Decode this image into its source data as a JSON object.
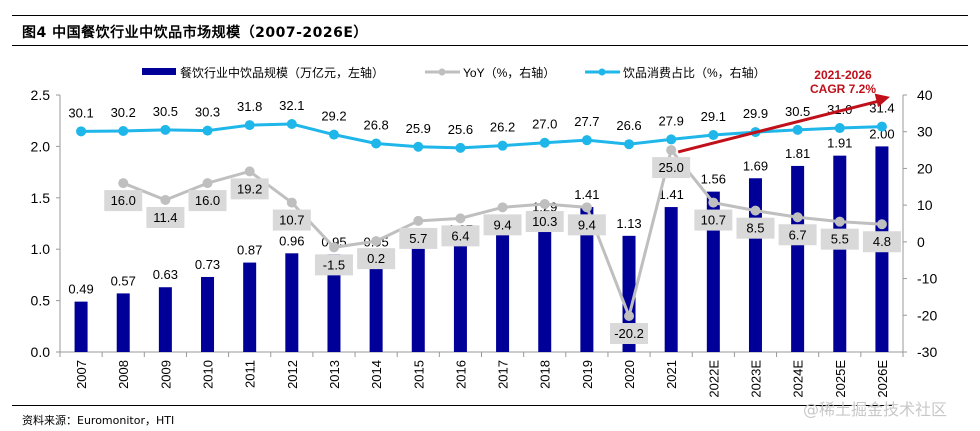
{
  "figure": {
    "title": "图4  中国餐饮行业中饮品市场规模（2007-2026E）",
    "source": "资料来源：Euromonitor，HTI",
    "watermark": "@稀土掘金技术社区"
  },
  "chart_data": {
    "type": "bar+line",
    "categories": [
      "2007",
      "2008",
      "2009",
      "2010",
      "2011",
      "2012",
      "2013",
      "2014",
      "2015",
      "2016",
      "2017",
      "2018",
      "2019",
      "2020",
      "2021",
      "2022E",
      "2023E",
      "2024E",
      "2025E",
      "2026E"
    ],
    "series": [
      {
        "name": "餐饮行业中饮品规模（万亿元，左轴）",
        "type": "bar",
        "axis": "left",
        "color": "#000099",
        "values": [
          0.49,
          0.57,
          0.63,
          0.73,
          0.87,
          0.96,
          0.95,
          0.95,
          1.01,
          1.07,
          1.17,
          1.29,
          1.41,
          1.13,
          1.41,
          1.56,
          1.69,
          1.81,
          1.91,
          2.0
        ],
        "labels": [
          "0.49",
          "0.57",
          "0.63",
          "0.73",
          "0.87",
          "0.96",
          "0.95",
          "0.95",
          "1.01",
          "1.07",
          "1.17",
          "1.29",
          "1.41",
          "1.13",
          "1.41",
          "1.56",
          "1.69",
          "1.81",
          "1.91",
          "2.00"
        ]
      },
      {
        "name": "YoY（%，右轴）",
        "type": "line",
        "axis": "right",
        "color": "#bfbfbf",
        "values": [
          null,
          16.0,
          11.4,
          16.0,
          19.2,
          10.7,
          -1.5,
          0.2,
          5.7,
          6.4,
          9.4,
          10.3,
          9.4,
          -20.2,
          25.0,
          10.7,
          8.5,
          6.7,
          5.5,
          4.8
        ],
        "labels": [
          "",
          "16.0",
          "11.4",
          "16.0",
          "19.2",
          "10.7",
          "-1.5",
          "0.2",
          "5.7",
          "6.4",
          "9.4",
          "10.3",
          "9.4",
          "-20.2",
          "25.0",
          "10.7",
          "8.5",
          "6.7",
          "5.5",
          "4.8"
        ]
      },
      {
        "name": "饮品消费占比（%，右轴）",
        "type": "line",
        "axis": "right",
        "color": "#1fb6ea",
        "values": [
          30.1,
          30.2,
          30.5,
          30.3,
          31.8,
          32.1,
          29.2,
          26.8,
          25.9,
          25.6,
          26.2,
          27.0,
          27.7,
          26.6,
          27.9,
          29.1,
          29.9,
          30.5,
          31.0,
          31.4
        ],
        "labels": [
          "30.1",
          "30.2",
          "30.5",
          "30.3",
          "31.8",
          "32.1",
          "29.2",
          "26.8",
          "25.9",
          "25.6",
          "26.2",
          "27.0",
          "27.7",
          "26.6",
          "27.9",
          "29.1",
          "29.9",
          "30.5",
          "31.0",
          "31.4"
        ]
      }
    ],
    "left_axis": {
      "range": [
        0,
        2.5
      ],
      "ticks": [
        "0.0",
        "0.5",
        "1.0",
        "1.5",
        "2.0",
        "2.5"
      ],
      "tick_values": [
        0,
        0.5,
        1.0,
        1.5,
        2.0,
        2.5
      ]
    },
    "right_axis": {
      "range": [
        -30,
        40
      ],
      "ticks": [
        "-30",
        "-20",
        "-10",
        "0",
        "10",
        "20",
        "30",
        "40"
      ],
      "tick_values": [
        -30,
        -20,
        -10,
        0,
        10,
        20,
        30,
        40
      ]
    },
    "annotation": {
      "line1": "2021-2026",
      "line2": "CAGR 7.2%",
      "color": "#c0101a",
      "from_category": "2021",
      "to_category": "2026E"
    },
    "legend": {
      "position": "top"
    },
    "grid": false
  }
}
